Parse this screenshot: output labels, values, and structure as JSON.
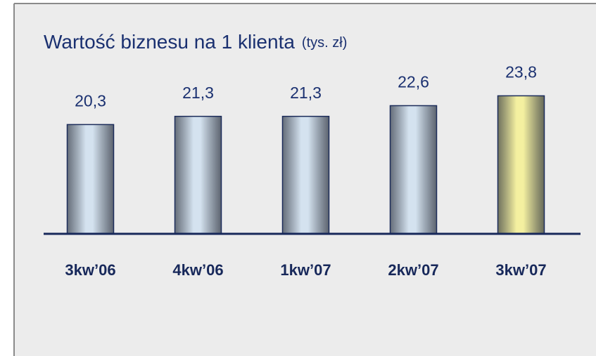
{
  "chart_data": {
    "type": "bar",
    "title": "Wartość biznesu na 1 klienta",
    "subtitle": "(tys. zł)",
    "categories": [
      "3kw’06",
      "4kw’06",
      "1kw’07",
      "2kw’07",
      "3kw’07"
    ],
    "values": [
      20.3,
      21.3,
      21.3,
      22.6,
      23.8
    ],
    "value_labels": [
      "20,3",
      "21,3",
      "21,3",
      "22,6",
      "23,8"
    ],
    "colors": [
      "#d4e2ef",
      "#d4e2ef",
      "#d4e2ef",
      "#d4e2ef",
      "#f4f0a0"
    ],
    "ylim": [
      7,
      27
    ]
  }
}
